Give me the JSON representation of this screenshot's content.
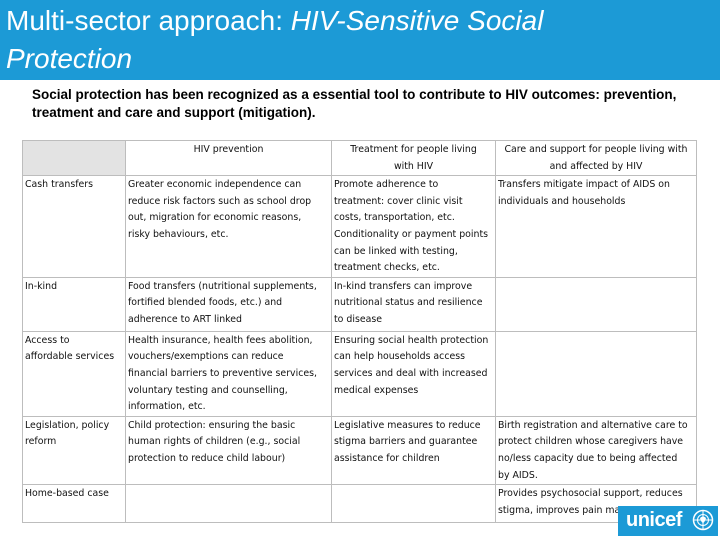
{
  "title": {
    "lead": "Multi-sector approach: ",
    "emphasis_line1": "HIV-Sensitive Social",
    "emphasis_line2": "Protection"
  },
  "subtitle": "Social protection has been recognized as a essential tool to contribute to HIV outcomes: prevention, treatment and care and support (mitigation).",
  "table": {
    "headers": [
      "",
      "HIV prevention",
      "Treatment for people living\nwith HIV",
      "Care and support for people living with\nand affected by HIV"
    ],
    "rows": [
      {
        "label": "Cash transfers",
        "prevention": "Greater economic independence can\nreduce risk factors such as school drop\nout, migration for economic reasons,\nrisky behaviours, etc.",
        "treatment": "Promote adherence to\ntreatment:  cover clinic visit\ncosts, transportation, etc.\nConditionality or payment points\ncan be linked with testing,\ntreatment checks, etc.",
        "care": "Transfers mitigate impact of AIDS on\nindividuals and households"
      },
      {
        "label": "In-kind",
        "prevention": "Food transfers (nutritional supplements,\nfortified blended foods, etc.) and\nadherence to ART linked",
        "treatment": "In-kind transfers can improve\nnutritional status and resilience\nto disease",
        "care": ""
      },
      {
        "label": "Access to\naffordable services",
        "prevention": "Health insurance, health fees abolition,\nvouchers/exemptions can reduce\nfinancial barriers to preventive services,\nvoluntary testing and counselling,\ninformation, etc.",
        "treatment": "Ensuring social health protection\ncan help households access\nservices and deal with increased\nmedical expenses",
        "care": ""
      },
      {
        "label": "Legislation, policy\nreform",
        "prevention": "Child protection: ensuring the basic\nhuman rights of children (e.g., social\nprotection to reduce child labour)",
        "treatment": "Legislative measures to reduce\nstigma barriers and guarantee\nassistance for children",
        "care": "Birth registration and alternative care to\nprotect children whose caregivers have\nno/less capacity due to being affected\nby AIDS."
      },
      {
        "label": "Home-based case",
        "prevention": "",
        "treatment": "",
        "care": "Provides psychosocial support, reduces\nstigma, improves pain management, etc."
      }
    ]
  },
  "logo": {
    "text": "unicef",
    "icon": "unicef-emblem-icon"
  },
  "colors": {
    "accent": "#1c9ad6",
    "header_blank_cell": "#e3e3e3",
    "border": "#bdbdbd"
  }
}
